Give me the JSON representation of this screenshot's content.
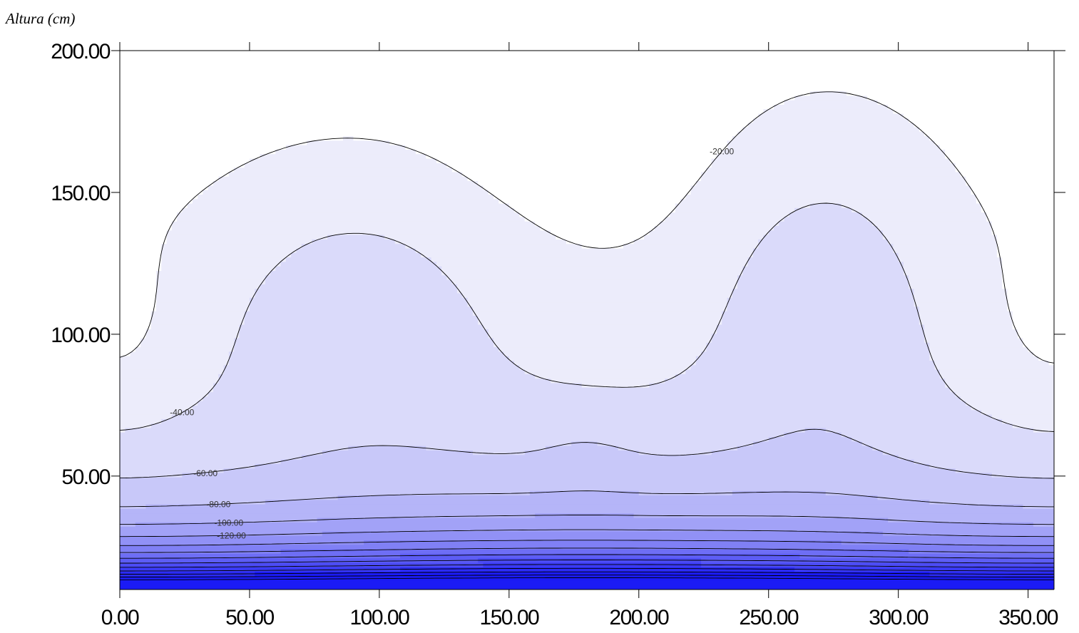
{
  "chart_data": {
    "type": "contour",
    "ylabel": "Altura (cm)",
    "xlabel": "",
    "xlim": [
      0,
      360
    ],
    "ylim": [
      10,
      200
    ],
    "x_ticks": [
      "0.00",
      "50.00",
      "100.00",
      "150.00",
      "200.00",
      "250.00",
      "300.00",
      "350.00"
    ],
    "y_ticks": [
      "50.00",
      "100.00",
      "150.00",
      "200.00"
    ],
    "contour_levels": [
      -20,
      -40,
      -60,
      -80,
      -100,
      -120,
      -140,
      -160,
      -180,
      -200,
      -220,
      -240,
      -260,
      -280,
      -300
    ],
    "contour_labels": [
      "-20.00",
      "-40.00",
      "-60.00",
      "-80.00",
      "-100.00",
      "-120.00"
    ],
    "fill_colors": [
      "#ffffff",
      "#ececfb",
      "#dadafa",
      "#c8c8f9",
      "#b5b5f8",
      "#a2a2f7",
      "#9191f6",
      "#8080f5",
      "#6e6ef5",
      "#5d5df5",
      "#4c4cf5",
      "#3b3bf5",
      "#2b2bf5",
      "#1b1bf5"
    ]
  }
}
